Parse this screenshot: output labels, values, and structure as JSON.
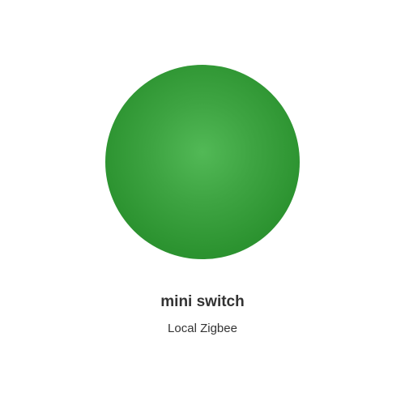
{
  "device": {
    "name": "mini switch",
    "subtitle": "Local Zigbee",
    "state_color": "#3ea442"
  }
}
